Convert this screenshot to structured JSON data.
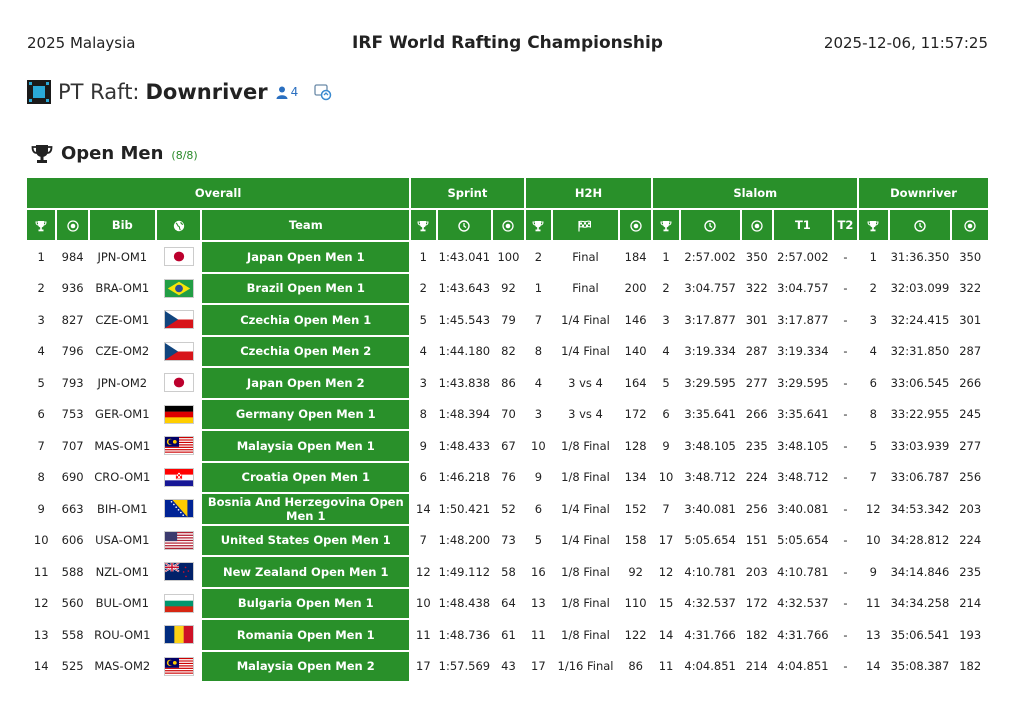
{
  "header": {
    "location": "2025 Malaysia",
    "title": "IRF World Rafting Championship",
    "datetime": "2025-12-06, 11:57:25"
  },
  "raft": {
    "prefix": "PT Raft:",
    "name": "Downriver",
    "people_count": "4"
  },
  "category": {
    "title": "Open Men",
    "count": "(8/8)"
  },
  "groups": {
    "overall": "Overall",
    "sprint": "Sprint",
    "h2h": "H2H",
    "slalom": "Slalom",
    "downriver": "Downriver"
  },
  "columns": {
    "bib": "Bib",
    "team": "Team",
    "t1": "T1",
    "t2": "T2"
  },
  "rows": [
    {
      "rank": "1",
      "pts": "984",
      "bib": "JPN-OM1",
      "flag": "jpn",
      "team": "Japan Open Men 1",
      "s_rank": "1",
      "s_time": "1:43.041",
      "s_pts": "100",
      "h_rank": "2",
      "h_stage": "Final",
      "h_pts": "184",
      "sl_rank": "1",
      "sl_time": "2:57.002",
      "sl_pts": "350",
      "sl_t1": "2:57.002",
      "sl_t2": "-",
      "d_rank": "1",
      "d_time": "31:36.350",
      "d_pts": "350"
    },
    {
      "rank": "2",
      "pts": "936",
      "bib": "BRA-OM1",
      "flag": "bra",
      "team": "Brazil Open Men 1",
      "s_rank": "2",
      "s_time": "1:43.643",
      "s_pts": "92",
      "h_rank": "1",
      "h_stage": "Final",
      "h_pts": "200",
      "sl_rank": "2",
      "sl_time": "3:04.757",
      "sl_pts": "322",
      "sl_t1": "3:04.757",
      "sl_t2": "-",
      "d_rank": "2",
      "d_time": "32:03.099",
      "d_pts": "322"
    },
    {
      "rank": "3",
      "pts": "827",
      "bib": "CZE-OM1",
      "flag": "cze",
      "team": "Czechia Open Men 1",
      "s_rank": "5",
      "s_time": "1:45.543",
      "s_pts": "79",
      "h_rank": "7",
      "h_stage": "1/4 Final",
      "h_pts": "146",
      "sl_rank": "3",
      "sl_time": "3:17.877",
      "sl_pts": "301",
      "sl_t1": "3:17.877",
      "sl_t2": "-",
      "d_rank": "3",
      "d_time": "32:24.415",
      "d_pts": "301"
    },
    {
      "rank": "4",
      "pts": "796",
      "bib": "CZE-OM2",
      "flag": "cze",
      "team": "Czechia Open Men 2",
      "s_rank": "4",
      "s_time": "1:44.180",
      "s_pts": "82",
      "h_rank": "8",
      "h_stage": "1/4 Final",
      "h_pts": "140",
      "sl_rank": "4",
      "sl_time": "3:19.334",
      "sl_pts": "287",
      "sl_t1": "3:19.334",
      "sl_t2": "-",
      "d_rank": "4",
      "d_time": "32:31.850",
      "d_pts": "287"
    },
    {
      "rank": "5",
      "pts": "793",
      "bib": "JPN-OM2",
      "flag": "jpn",
      "team": "Japan Open Men 2",
      "s_rank": "3",
      "s_time": "1:43.838",
      "s_pts": "86",
      "h_rank": "4",
      "h_stage": "3 vs 4",
      "h_pts": "164",
      "sl_rank": "5",
      "sl_time": "3:29.595",
      "sl_pts": "277",
      "sl_t1": "3:29.595",
      "sl_t2": "-",
      "d_rank": "6",
      "d_time": "33:06.545",
      "d_pts": "266"
    },
    {
      "rank": "6",
      "pts": "753",
      "bib": "GER-OM1",
      "flag": "ger",
      "team": "Germany Open Men 1",
      "s_rank": "8",
      "s_time": "1:48.394",
      "s_pts": "70",
      "h_rank": "3",
      "h_stage": "3 vs 4",
      "h_pts": "172",
      "sl_rank": "6",
      "sl_time": "3:35.641",
      "sl_pts": "266",
      "sl_t1": "3:35.641",
      "sl_t2": "-",
      "d_rank": "8",
      "d_time": "33:22.955",
      "d_pts": "245"
    },
    {
      "rank": "7",
      "pts": "707",
      "bib": "MAS-OM1",
      "flag": "mas",
      "team": "Malaysia Open Men 1",
      "s_rank": "9",
      "s_time": "1:48.433",
      "s_pts": "67",
      "h_rank": "10",
      "h_stage": "1/8 Final",
      "h_pts": "128",
      "sl_rank": "9",
      "sl_time": "3:48.105",
      "sl_pts": "235",
      "sl_t1": "3:48.105",
      "sl_t2": "-",
      "d_rank": "5",
      "d_time": "33:03.939",
      "d_pts": "277"
    },
    {
      "rank": "8",
      "pts": "690",
      "bib": "CRO-OM1",
      "flag": "cro",
      "team": "Croatia Open Men 1",
      "s_rank": "6",
      "s_time": "1:46.218",
      "s_pts": "76",
      "h_rank": "9",
      "h_stage": "1/8 Final",
      "h_pts": "134",
      "sl_rank": "10",
      "sl_time": "3:48.712",
      "sl_pts": "224",
      "sl_t1": "3:48.712",
      "sl_t2": "-",
      "d_rank": "7",
      "d_time": "33:06.787",
      "d_pts": "256"
    },
    {
      "rank": "9",
      "pts": "663",
      "bib": "BIH-OM1",
      "flag": "bih",
      "team": "Bosnia And Herzegovina Open Men 1",
      "s_rank": "14",
      "s_time": "1:50.421",
      "s_pts": "52",
      "h_rank": "6",
      "h_stage": "1/4 Final",
      "h_pts": "152",
      "sl_rank": "7",
      "sl_time": "3:40.081",
      "sl_pts": "256",
      "sl_t1": "3:40.081",
      "sl_t2": "-",
      "d_rank": "12",
      "d_time": "34:53.342",
      "d_pts": "203"
    },
    {
      "rank": "10",
      "pts": "606",
      "bib": "USA-OM1",
      "flag": "usa",
      "team": "United States Open Men 1",
      "s_rank": "7",
      "s_time": "1:48.200",
      "s_pts": "73",
      "h_rank": "5",
      "h_stage": "1/4 Final",
      "h_pts": "158",
      "sl_rank": "17",
      "sl_time": "5:05.654",
      "sl_pts": "151",
      "sl_t1": "5:05.654",
      "sl_t2": "-",
      "d_rank": "10",
      "d_time": "34:28.812",
      "d_pts": "224"
    },
    {
      "rank": "11",
      "pts": "588",
      "bib": "NZL-OM1",
      "flag": "nzl",
      "team": "New Zealand Open Men 1",
      "s_rank": "12",
      "s_time": "1:49.112",
      "s_pts": "58",
      "h_rank": "16",
      "h_stage": "1/8 Final",
      "h_pts": "92",
      "sl_rank": "12",
      "sl_time": "4:10.781",
      "sl_pts": "203",
      "sl_t1": "4:10.781",
      "sl_t2": "-",
      "d_rank": "9",
      "d_time": "34:14.846",
      "d_pts": "235"
    },
    {
      "rank": "12",
      "pts": "560",
      "bib": "BUL-OM1",
      "flag": "bul",
      "team": "Bulgaria Open Men 1",
      "s_rank": "10",
      "s_time": "1:48.438",
      "s_pts": "64",
      "h_rank": "13",
      "h_stage": "1/8 Final",
      "h_pts": "110",
      "sl_rank": "15",
      "sl_time": "4:32.537",
      "sl_pts": "172",
      "sl_t1": "4:32.537",
      "sl_t2": "-",
      "d_rank": "11",
      "d_time": "34:34.258",
      "d_pts": "214"
    },
    {
      "rank": "13",
      "pts": "558",
      "bib": "ROU-OM1",
      "flag": "rou",
      "team": "Romania Open Men 1",
      "s_rank": "11",
      "s_time": "1:48.736",
      "s_pts": "61",
      "h_rank": "11",
      "h_stage": "1/8 Final",
      "h_pts": "122",
      "sl_rank": "14",
      "sl_time": "4:31.766",
      "sl_pts": "182",
      "sl_t1": "4:31.766",
      "sl_t2": "-",
      "d_rank": "13",
      "d_time": "35:06.541",
      "d_pts": "193"
    },
    {
      "rank": "14",
      "pts": "525",
      "bib": "MAS-OM2",
      "flag": "mas",
      "team": "Malaysia Open Men 2",
      "s_rank": "17",
      "s_time": "1:57.569",
      "s_pts": "43",
      "h_rank": "17",
      "h_stage": "1/16 Final",
      "h_pts": "86",
      "sl_rank": "11",
      "sl_time": "4:04.851",
      "sl_pts": "214",
      "sl_t1": "4:04.851",
      "sl_t2": "-",
      "d_rank": "14",
      "d_time": "35:08.387",
      "d_pts": "182"
    }
  ]
}
